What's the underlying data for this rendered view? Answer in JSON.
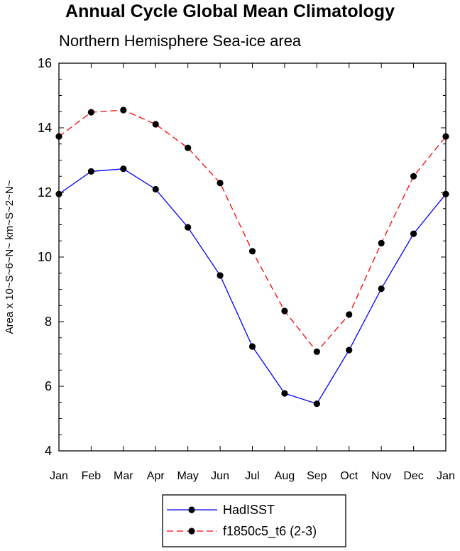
{
  "title": "Annual Cycle Global Mean Climatology",
  "subtitle": "Northern Hemisphere Sea-ice area",
  "chart_data": {
    "type": "line",
    "categories": [
      "Jan",
      "Feb",
      "Mar",
      "Apr",
      "May",
      "Jun",
      "Jul",
      "Aug",
      "Sep",
      "Oct",
      "Nov",
      "Dec",
      "Jan"
    ],
    "ylabel": "Area x 10~S~6~N~ km~S~2~N~",
    "xlabel": "",
    "ylim": [
      4,
      16
    ],
    "yticks": [
      4,
      6,
      8,
      10,
      12,
      14,
      16
    ],
    "series": [
      {
        "name": "HadISST",
        "color": "#0000ff",
        "dash": "solid",
        "values": [
          11.95,
          12.65,
          12.73,
          12.1,
          10.92,
          9.43,
          7.23,
          5.78,
          5.46,
          7.12,
          9.02,
          10.72,
          11.95
        ]
      },
      {
        "name": "f1850c5_t6 (2-3)",
        "color": "#ff0000",
        "dash": "dashed",
        "values": [
          13.73,
          14.48,
          14.55,
          14.11,
          13.38,
          12.29,
          10.18,
          8.33,
          7.07,
          8.22,
          10.43,
          12.5,
          13.73
        ]
      }
    ],
    "marker": "filled-circle"
  }
}
